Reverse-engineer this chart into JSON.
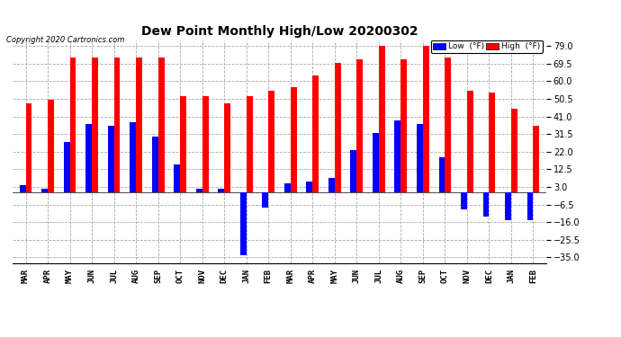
{
  "title": "Dew Point Monthly High/Low 20200302",
  "copyright": "Copyright 2020 Cartronics.com",
  "categories": [
    "MAR",
    "APR",
    "MAY",
    "JUN",
    "JUL",
    "AUG",
    "SEP",
    "OCT",
    "NOV",
    "DEC",
    "JAN",
    "FEB",
    "MAR",
    "APR",
    "MAY",
    "JUN",
    "JUL",
    "AUG",
    "SEP",
    "OCT",
    "NOV",
    "DEC",
    "JAN",
    "FEB"
  ],
  "high_values": [
    48,
    50,
    73,
    73,
    73,
    73,
    73,
    52,
    52,
    48,
    52,
    55,
    57,
    63,
    70,
    72,
    79,
    72,
    79,
    73,
    55,
    54,
    45,
    36
  ],
  "low_values": [
    4,
    2,
    27,
    37,
    36,
    38,
    30,
    15,
    2,
    2,
    -34,
    -8,
    5,
    6,
    8,
    23,
    32,
    39,
    37,
    19,
    -9,
    -13,
    -15,
    -15
  ],
  "high_color": "#ff0000",
  "low_color": "#0000ff",
  "bg_color": "#ffffff",
  "grid_color": "#aaaaaa",
  "yticks": [
    79.0,
    69.5,
    60.0,
    50.5,
    41.0,
    31.5,
    22.0,
    12.5,
    3.0,
    -6.5,
    -16.0,
    -25.5,
    -35.0
  ],
  "ylim": [
    -38,
    82
  ],
  "bar_width": 0.28,
  "figwidth": 6.9,
  "figheight": 3.75,
  "dpi": 100
}
